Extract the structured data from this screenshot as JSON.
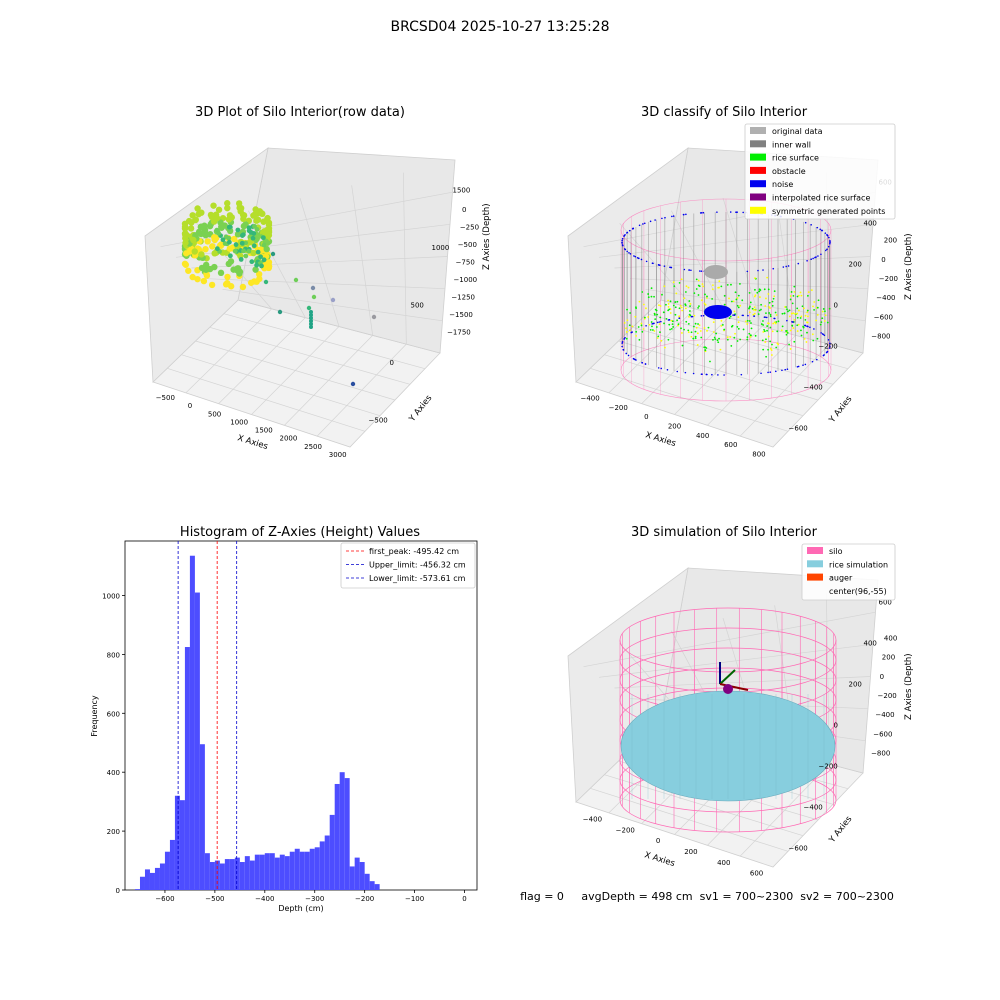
{
  "suptitle": "BRCSD04 2025-10-27 13:25:28",
  "colors": {
    "hist_bar": "#4d4dff",
    "peak_line": "#ff0000",
    "limit_line": "#0000cc",
    "silo": "#ff69b4",
    "rice_sim": "#87cede",
    "auger": "#ff4500",
    "original": "#b0b0b0",
    "inner_wall": "#808080",
    "rice_surface": "#00ee00",
    "obstacle": "#ff0000",
    "noise": "#0000ee",
    "interp": "#800080",
    "symmetric": "#ffff00"
  },
  "panel1": {
    "title": "3D Plot of Silo Interior(row data)",
    "xlabel": "X Axies",
    "ylabel": "Y Axies",
    "zlabel": "Z Axies (Depth)",
    "xticks": [
      "−500",
      "0",
      "500",
      "1000",
      "1500",
      "2000",
      "2500",
      "3000"
    ],
    "yticks": [
      "−500",
      "0",
      "500",
      "1000",
      "1500"
    ],
    "zticks": [
      "0",
      "−250",
      "−500",
      "−750",
      "−1000",
      "−1250",
      "−1500",
      "−1750"
    ]
  },
  "panel2": {
    "title": "3D classify of Silo Interior",
    "xlabel": "X Axies",
    "ylabel": "Y Axies",
    "zlabel": "Z Axies (Depth)",
    "xticks": [
      "−400",
      "−200",
      "0",
      "200",
      "400",
      "600",
      "800"
    ],
    "yticks": [
      "−600",
      "−400",
      "−200",
      "0",
      "200",
      "400",
      "600"
    ],
    "zticks": [
      "200",
      "0",
      "−200",
      "−400",
      "−600",
      "−800"
    ],
    "legend": [
      {
        "label": "original data",
        "color_key": "original"
      },
      {
        "label": "inner wall",
        "color_key": "inner_wall"
      },
      {
        "label": "rice surface",
        "color_key": "rice_surface"
      },
      {
        "label": "obstacle",
        "color_key": "obstacle"
      },
      {
        "label": "noise",
        "color_key": "noise"
      },
      {
        "label": "interpolated rice surface",
        "color_key": "interp"
      },
      {
        "label": "symmetric generated points",
        "color_key": "symmetric"
      }
    ]
  },
  "panel3": {
    "title": "3D simulation of Silo Interior",
    "xlabel": "X Axies",
    "ylabel": "Y Axies",
    "zlabel": "Z Axies (Depth)",
    "xticks": [
      "−400",
      "−200",
      "0",
      "200",
      "400",
      "600"
    ],
    "yticks": [
      "−600",
      "−400",
      "−200",
      "0",
      "200",
      "400",
      "600"
    ],
    "zticks": [
      "400",
      "200",
      "0",
      "−200",
      "−400",
      "−600",
      "−800"
    ],
    "legend": [
      {
        "label": "silo",
        "color_key": "silo"
      },
      {
        "label": "rice simulation",
        "color_key": "rice_sim"
      },
      {
        "label": "auger",
        "color_key": "auger"
      },
      {
        "label": "center(96,-55)",
        "color_key": ""
      }
    ]
  },
  "footer": "flag = 0     avgDepth = 498 cm  sv1 = 700~2300  sv2 = 700~2300",
  "chart_data": {
    "type": "bar",
    "title": "Histogram of Z-Axies (Height) Values",
    "xlabel": "Depth (cm)",
    "ylabel": "Frequency",
    "xlim": [
      -680,
      25
    ],
    "ylim": [
      0,
      1185
    ],
    "xticks": [
      -600,
      -500,
      -400,
      -300,
      -200,
      -100,
      0
    ],
    "yticks": [
      0,
      200,
      400,
      600,
      800,
      1000
    ],
    "bin_start": -670,
    "bin_width": 10,
    "values": [
      0,
      3,
      45,
      70,
      58,
      75,
      90,
      130,
      170,
      320,
      305,
      825,
      1135,
      1010,
      495,
      125,
      95,
      100,
      90,
      105,
      105,
      110,
      95,
      115,
      100,
      120,
      120,
      125,
      125,
      110,
      120,
      115,
      130,
      140,
      130,
      130,
      140,
      145,
      165,
      185,
      255,
      360,
      400,
      380,
      80,
      110,
      95,
      55,
      30,
      20
    ],
    "lines": [
      {
        "label": "first_peak: -495.42 cm",
        "x": -495.42,
        "color_key": "peak_line"
      },
      {
        "label": "Upper_limit: -456.32 cm",
        "x": -456.32,
        "color_key": "limit_line"
      },
      {
        "label": "Lower_limit: -573.61 cm",
        "x": -573.61,
        "color_key": "limit_line"
      }
    ]
  }
}
